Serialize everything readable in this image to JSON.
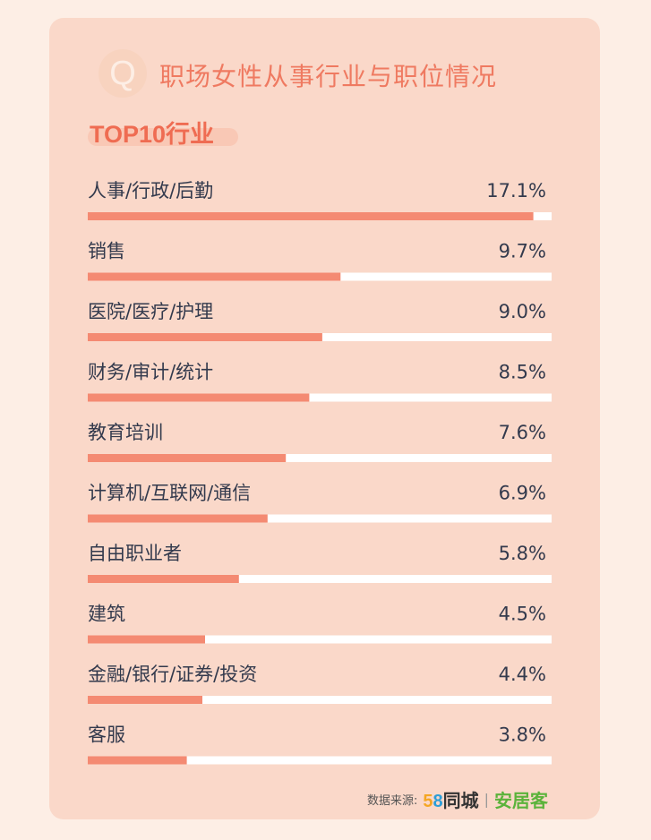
{
  "header": {
    "badge_letter": "Q",
    "title": "职场女性从事行业与职位情况",
    "subtitle": "TOP10行业"
  },
  "footer": {
    "source_label": "数据来源:",
    "logo_58_digits": "58",
    "logo_58_text": "同城",
    "separator": "|",
    "logo_anjuke": "安居客"
  },
  "colors": {
    "bar": "#f48a72",
    "track": "#ffffff",
    "label": "#333a4d",
    "title": "#ef7a61"
  },
  "chart_data": {
    "type": "bar",
    "orientation": "horizontal",
    "title": "TOP10行业",
    "categories": [
      "人事/行政/后勤",
      "销售",
      "医院/医疗/护理",
      "财务/审计/统计",
      "教育培训",
      "计算机/互联网/通信",
      "自由职业者",
      "建筑",
      "金融/银行/证券/投资",
      "客服"
    ],
    "values": [
      17.1,
      9.7,
      9.0,
      8.5,
      7.6,
      6.9,
      5.8,
      4.5,
      4.4,
      3.8
    ],
    "value_labels": [
      "17.1%",
      "9.7%",
      "9.0%",
      "8.5%",
      "7.6%",
      "6.9%",
      "5.8%",
      "4.5%",
      "4.4%",
      "3.8%"
    ],
    "unit": "%",
    "xlim": [
      0,
      17.8
    ]
  }
}
